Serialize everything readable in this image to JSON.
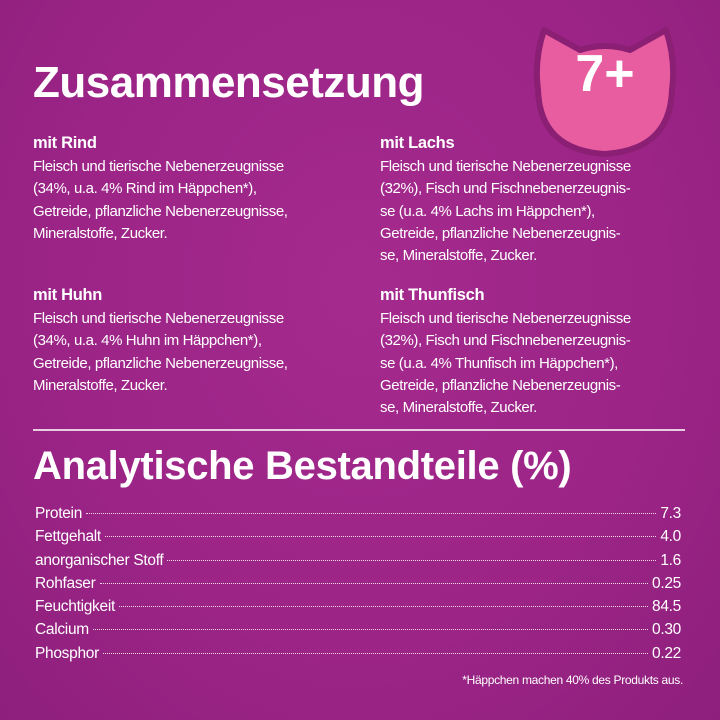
{
  "title": "Zusammensetzung",
  "badge": {
    "text": "7+",
    "icon": "cat-head-icon",
    "color": "#e85d9f",
    "border_color": "#8a1f74"
  },
  "background_color": "#9c2586",
  "sections": [
    {
      "heading": "mit Rind",
      "text": "Fleisch und tierische Nebenerzeugnisse\n(34%, u.a. 4% Rind im Häppchen*),\nGetreide, pflanzliche Nebenerzeugnisse,\nMineralstoffe, Zucker."
    },
    {
      "heading": "mit Lachs",
      "text": "Fleisch und tierische Nebenerzeugnisse\n(32%), Fisch und Fischnebenerzeugnis-\nse (u.a. 4% Lachs im Häppchen*),\nGetreide, pflanzliche Nebenerzeugnis-\nse, Mineralstoffe, Zucker."
    },
    {
      "heading": "mit Huhn",
      "text": "Fleisch und tierische Nebenerzeugnisse\n(34%, u.a. 4% Huhn im Häppchen*),\nGetreide, pflanzliche Nebenerzeugnisse,\nMineralstoffe, Zucker."
    },
    {
      "heading": "mit Thunfisch",
      "text": "Fleisch und tierische Nebenerzeugnisse\n(32%), Fisch und Fischnebenerzeugnis-\nse (u.a. 4% Thunfisch im Häppchen*),\nGetreide, pflanzliche Nebenerzeugnis-\nse, Mineralstoffe, Zucker."
    }
  ],
  "analysis": {
    "title": "Analytische Bestandteile (%)",
    "rows": [
      {
        "label": "Protein",
        "value": "7.3"
      },
      {
        "label": "Fettgehalt",
        "value": "4.0"
      },
      {
        "label": "anorganischer Stoff",
        "value": "1.6"
      },
      {
        "label": "Rohfaser",
        "value": "0.25"
      },
      {
        "label": "Feuchtigkeit",
        "value": "84.5"
      },
      {
        "label": "Calcium",
        "value": "0.30"
      },
      {
        "label": "Phosphor",
        "value": "0.22"
      }
    ],
    "footnote": "*Häppchen machen 40% des Produkts aus."
  }
}
